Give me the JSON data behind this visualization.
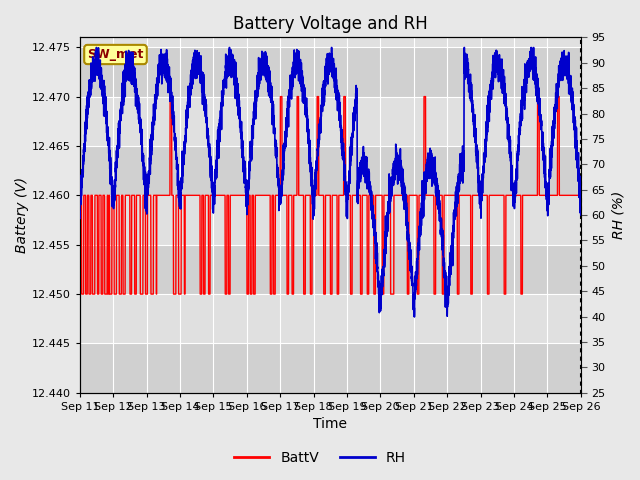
{
  "title": "Battery Voltage and RH",
  "xlabel": "Time",
  "ylabel_left": "Battery (V)",
  "ylabel_right": "RH (%)",
  "station_label": "SW_met",
  "x_start": 11,
  "x_end": 26,
  "x_ticks": [
    11,
    12,
    13,
    14,
    15,
    16,
    17,
    18,
    19,
    20,
    21,
    22,
    23,
    24,
    25,
    26
  ],
  "x_tick_labels": [
    "Sep 11",
    "Sep 12",
    "Sep 13",
    "Sep 14",
    "Sep 15",
    "Sep 16",
    "Sep 17",
    "Sep 18",
    "Sep 19",
    "Sep 20",
    "Sep 21",
    "Sep 22",
    "Sep 23",
    "Sep 24",
    "Sep 25",
    "Sep 26"
  ],
  "ylim_left": [
    12.44,
    12.476
  ],
  "ylim_right": [
    25,
    95
  ],
  "yticks_left": [
    12.44,
    12.445,
    12.45,
    12.455,
    12.46,
    12.465,
    12.47,
    12.475
  ],
  "yticks_right": [
    25,
    30,
    35,
    40,
    45,
    50,
    55,
    60,
    65,
    70,
    75,
    80,
    85,
    90,
    95
  ],
  "fig_bg_color": "#e8e8e8",
  "plot_bg_color": "#e0e0e0",
  "plot_bg_band_color": "#d0d0d0",
  "batt_color": "#ff0000",
  "rh_color": "#0000cc",
  "grid_color": "#ffffff",
  "legend_batt": "BattV",
  "legend_rh": "RH",
  "title_fontsize": 12,
  "axis_label_fontsize": 10,
  "tick_fontsize": 8,
  "station_fontsize": 9,
  "legend_fontsize": 10
}
